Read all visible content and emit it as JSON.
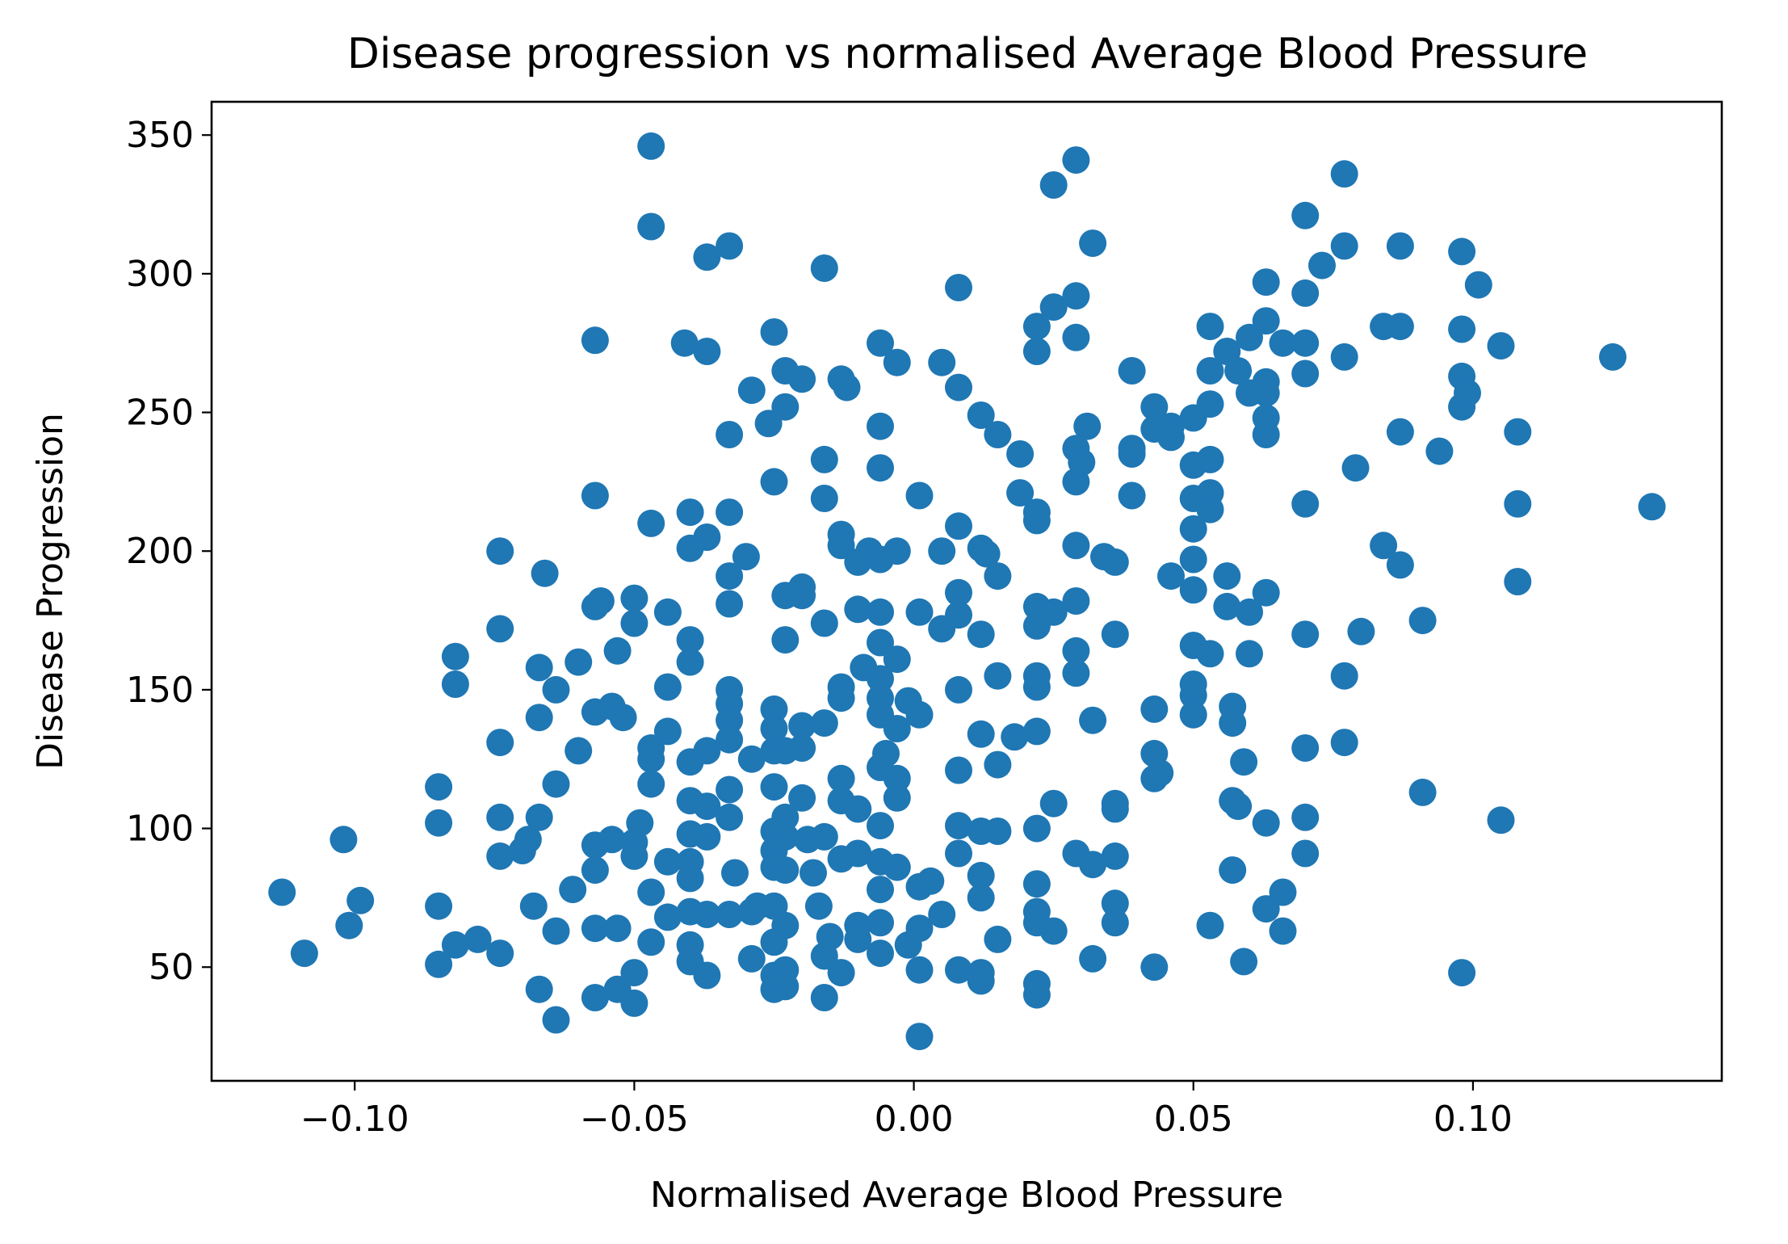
{
  "chart_data": {
    "type": "scatter",
    "title": "Disease progression vs normalised Average Blood Pressure",
    "xlabel": "Normalised Average Blood Pressure",
    "ylabel": "Disease Progression",
    "xlim": [
      -0.1256,
      0.1445
    ],
    "ylim": [
      9,
      362
    ],
    "x_ticks": [
      -0.1,
      -0.05,
      0.0,
      0.05,
      0.1
    ],
    "x_tick_labels": [
      "−0.10",
      "−0.05",
      "0.00",
      "0.05",
      "0.10"
    ],
    "y_ticks": [
      50,
      100,
      150,
      200,
      250,
      300,
      350
    ],
    "y_tick_labels": [
      "50",
      "100",
      "150",
      "200",
      "250",
      "300",
      "350"
    ],
    "grid": false,
    "marker_color": "#1f77b4",
    "points": [
      [
        -0.113,
        77
      ],
      [
        -0.109,
        55
      ],
      [
        -0.102,
        96
      ],
      [
        -0.101,
        65
      ],
      [
        -0.099,
        74
      ],
      [
        -0.085,
        115
      ],
      [
        -0.085,
        102
      ],
      [
        -0.085,
        72
      ],
      [
        -0.085,
        51
      ],
      [
        -0.082,
        162
      ],
      [
        -0.082,
        152
      ],
      [
        -0.082,
        58
      ],
      [
        -0.078,
        60
      ],
      [
        -0.074,
        200
      ],
      [
        -0.074,
        172
      ],
      [
        -0.074,
        131
      ],
      [
        -0.074,
        104
      ],
      [
        -0.074,
        90
      ],
      [
        -0.074,
        55
      ],
      [
        -0.07,
        92
      ],
      [
        -0.069,
        96
      ],
      [
        -0.068,
        72
      ],
      [
        -0.067,
        158
      ],
      [
        -0.067,
        140
      ],
      [
        -0.067,
        104
      ],
      [
        -0.067,
        42
      ],
      [
        -0.066,
        192
      ],
      [
        -0.064,
        150
      ],
      [
        -0.064,
        116
      ],
      [
        -0.064,
        63
      ],
      [
        -0.064,
        31
      ],
      [
        -0.061,
        78
      ],
      [
        -0.06,
        160
      ],
      [
        -0.06,
        128
      ],
      [
        -0.057,
        276
      ],
      [
        -0.057,
        220
      ],
      [
        -0.057,
        180
      ],
      [
        -0.057,
        142
      ],
      [
        -0.057,
        94
      ],
      [
        -0.057,
        85
      ],
      [
        -0.057,
        64
      ],
      [
        -0.057,
        39
      ],
      [
        -0.056,
        182
      ],
      [
        -0.054,
        144
      ],
      [
        -0.054,
        96
      ],
      [
        -0.053,
        164
      ],
      [
        -0.053,
        64
      ],
      [
        -0.053,
        42
      ],
      [
        -0.052,
        140
      ],
      [
        -0.05,
        183
      ],
      [
        -0.05,
        174
      ],
      [
        -0.05,
        95
      ],
      [
        -0.05,
        90
      ],
      [
        -0.05,
        48
      ],
      [
        -0.05,
        37
      ],
      [
        -0.049,
        102
      ],
      [
        -0.047,
        346
      ],
      [
        -0.047,
        317
      ],
      [
        -0.047,
        210
      ],
      [
        -0.047,
        129
      ],
      [
        -0.047,
        125
      ],
      [
        -0.047,
        116
      ],
      [
        -0.047,
        77
      ],
      [
        -0.047,
        59
      ],
      [
        -0.044,
        178
      ],
      [
        -0.044,
        151
      ],
      [
        -0.044,
        135
      ],
      [
        -0.044,
        88
      ],
      [
        -0.044,
        68
      ],
      [
        -0.041,
        275
      ],
      [
        -0.04,
        214
      ],
      [
        -0.04,
        201
      ],
      [
        -0.04,
        168
      ],
      [
        -0.04,
        160
      ],
      [
        -0.04,
        124
      ],
      [
        -0.04,
        110
      ],
      [
        -0.04,
        98
      ],
      [
        -0.04,
        88
      ],
      [
        -0.04,
        82
      ],
      [
        -0.04,
        70
      ],
      [
        -0.04,
        58
      ],
      [
        -0.04,
        52
      ],
      [
        -0.037,
        306
      ],
      [
        -0.037,
        272
      ],
      [
        -0.037,
        205
      ],
      [
        -0.037,
        128
      ],
      [
        -0.037,
        108
      ],
      [
        -0.037,
        97
      ],
      [
        -0.037,
        69
      ],
      [
        -0.037,
        47
      ],
      [
        -0.033,
        310
      ],
      [
        -0.033,
        242
      ],
      [
        -0.033,
        214
      ],
      [
        -0.033,
        191
      ],
      [
        -0.033,
        181
      ],
      [
        -0.033,
        150
      ],
      [
        -0.033,
        145
      ],
      [
        -0.033,
        139
      ],
      [
        -0.033,
        132
      ],
      [
        -0.033,
        114
      ],
      [
        -0.033,
        104
      ],
      [
        -0.033,
        69
      ],
      [
        -0.032,
        84
      ],
      [
        -0.03,
        198
      ],
      [
        -0.029,
        258
      ],
      [
        -0.029,
        125
      ],
      [
        -0.029,
        70
      ],
      [
        -0.029,
        53
      ],
      [
        -0.028,
        72
      ],
      [
        -0.026,
        246
      ],
      [
        -0.025,
        279
      ],
      [
        -0.025,
        225
      ],
      [
        -0.025,
        143
      ],
      [
        -0.025,
        136
      ],
      [
        -0.025,
        128
      ],
      [
        -0.025,
        115
      ],
      [
        -0.025,
        99
      ],
      [
        -0.025,
        92
      ],
      [
        -0.025,
        86
      ],
      [
        -0.025,
        72
      ],
      [
        -0.025,
        59
      ],
      [
        -0.025,
        47
      ],
      [
        -0.025,
        42
      ],
      [
        -0.023,
        265
      ],
      [
        -0.023,
        252
      ],
      [
        -0.023,
        184
      ],
      [
        -0.023,
        168
      ],
      [
        -0.023,
        128
      ],
      [
        -0.023,
        104
      ],
      [
        -0.023,
        97
      ],
      [
        -0.023,
        85
      ],
      [
        -0.023,
        65
      ],
      [
        -0.023,
        49
      ],
      [
        -0.023,
        43
      ],
      [
        -0.02,
        262
      ],
      [
        -0.02,
        187
      ],
      [
        -0.02,
        184
      ],
      [
        -0.02,
        137
      ],
      [
        -0.02,
        129
      ],
      [
        -0.02,
        111
      ],
      [
        -0.019,
        96
      ],
      [
        -0.018,
        84
      ],
      [
        -0.017,
        72
      ],
      [
        -0.016,
        302
      ],
      [
        -0.016,
        233
      ],
      [
        -0.016,
        219
      ],
      [
        -0.016,
        174
      ],
      [
        -0.016,
        138
      ],
      [
        -0.016,
        97
      ],
      [
        -0.016,
        54
      ],
      [
        -0.016,
        39
      ],
      [
        -0.015,
        61
      ],
      [
        -0.013,
        262
      ],
      [
        -0.013,
        206
      ],
      [
        -0.013,
        202
      ],
      [
        -0.013,
        151
      ],
      [
        -0.013,
        147
      ],
      [
        -0.013,
        118
      ],
      [
        -0.013,
        110
      ],
      [
        -0.013,
        89
      ],
      [
        -0.013,
        48
      ],
      [
        -0.012,
        259
      ],
      [
        -0.01,
        196
      ],
      [
        -0.01,
        179
      ],
      [
        -0.01,
        107
      ],
      [
        -0.01,
        91
      ],
      [
        -0.01,
        65
      ],
      [
        -0.01,
        60
      ],
      [
        -0.009,
        158
      ],
      [
        -0.008,
        200
      ],
      [
        -0.006,
        275
      ],
      [
        -0.006,
        245
      ],
      [
        -0.006,
        230
      ],
      [
        -0.006,
        197
      ],
      [
        -0.006,
        178
      ],
      [
        -0.006,
        167
      ],
      [
        -0.006,
        154
      ],
      [
        -0.006,
        147
      ],
      [
        -0.006,
        141
      ],
      [
        -0.006,
        122
      ],
      [
        -0.006,
        101
      ],
      [
        -0.006,
        88
      ],
      [
        -0.006,
        78
      ],
      [
        -0.006,
        66
      ],
      [
        -0.006,
        55
      ],
      [
        -0.005,
        127
      ],
      [
        -0.003,
        268
      ],
      [
        -0.003,
        200
      ],
      [
        -0.003,
        161
      ],
      [
        -0.003,
        136
      ],
      [
        -0.003,
        118
      ],
      [
        -0.003,
        111
      ],
      [
        -0.003,
        86
      ],
      [
        -0.001,
        146
      ],
      [
        -0.001,
        58
      ],
      [
        0.001,
        220
      ],
      [
        0.001,
        178
      ],
      [
        0.001,
        141
      ],
      [
        0.001,
        79
      ],
      [
        0.001,
        64
      ],
      [
        0.001,
        49
      ],
      [
        0.001,
        25
      ],
      [
        0.003,
        81
      ],
      [
        0.005,
        268
      ],
      [
        0.005,
        200
      ],
      [
        0.005,
        172
      ],
      [
        0.005,
        69
      ],
      [
        0.008,
        295
      ],
      [
        0.008,
        259
      ],
      [
        0.008,
        209
      ],
      [
        0.008,
        185
      ],
      [
        0.008,
        177
      ],
      [
        0.008,
        150
      ],
      [
        0.008,
        121
      ],
      [
        0.008,
        101
      ],
      [
        0.008,
        91
      ],
      [
        0.008,
        49
      ],
      [
        0.012,
        249
      ],
      [
        0.012,
        201
      ],
      [
        0.012,
        170
      ],
      [
        0.012,
        134
      ],
      [
        0.012,
        99
      ],
      [
        0.012,
        83
      ],
      [
        0.012,
        75
      ],
      [
        0.012,
        48
      ],
      [
        0.012,
        45
      ],
      [
        0.013,
        199
      ],
      [
        0.015,
        242
      ],
      [
        0.015,
        191
      ],
      [
        0.015,
        155
      ],
      [
        0.015,
        123
      ],
      [
        0.015,
        99
      ],
      [
        0.015,
        60
      ],
      [
        0.018,
        133
      ],
      [
        0.019,
        221
      ],
      [
        0.019,
        235
      ],
      [
        0.022,
        281
      ],
      [
        0.022,
        272
      ],
      [
        0.022,
        214
      ],
      [
        0.022,
        211
      ],
      [
        0.022,
        180
      ],
      [
        0.022,
        173
      ],
      [
        0.022,
        155
      ],
      [
        0.022,
        151
      ],
      [
        0.022,
        135
      ],
      [
        0.022,
        100
      ],
      [
        0.022,
        80
      ],
      [
        0.022,
        70
      ],
      [
        0.022,
        66
      ],
      [
        0.022,
        44
      ],
      [
        0.022,
        40
      ],
      [
        0.025,
        332
      ],
      [
        0.025,
        288
      ],
      [
        0.025,
        178
      ],
      [
        0.025,
        109
      ],
      [
        0.025,
        63
      ],
      [
        0.029,
        341
      ],
      [
        0.029,
        292
      ],
      [
        0.029,
        277
      ],
      [
        0.029,
        237
      ],
      [
        0.029,
        225
      ],
      [
        0.029,
        202
      ],
      [
        0.029,
        182
      ],
      [
        0.029,
        164
      ],
      [
        0.029,
        156
      ],
      [
        0.029,
        91
      ],
      [
        0.03,
        232
      ],
      [
        0.031,
        245
      ],
      [
        0.032,
        311
      ],
      [
        0.032,
        139
      ],
      [
        0.032,
        87
      ],
      [
        0.032,
        53
      ],
      [
        0.034,
        198
      ],
      [
        0.036,
        196
      ],
      [
        0.036,
        170
      ],
      [
        0.036,
        109
      ],
      [
        0.036,
        107
      ],
      [
        0.036,
        90
      ],
      [
        0.036,
        73
      ],
      [
        0.036,
        66
      ],
      [
        0.039,
        237
      ],
      [
        0.039,
        235
      ],
      [
        0.039,
        220
      ],
      [
        0.039,
        265
      ],
      [
        0.043,
        252
      ],
      [
        0.043,
        244
      ],
      [
        0.043,
        143
      ],
      [
        0.043,
        127
      ],
      [
        0.043,
        118
      ],
      [
        0.043,
        50
      ],
      [
        0.044,
        120
      ],
      [
        0.046,
        245
      ],
      [
        0.046,
        241
      ],
      [
        0.046,
        191
      ],
      [
        0.05,
        248
      ],
      [
        0.05,
        231
      ],
      [
        0.05,
        219
      ],
      [
        0.05,
        208
      ],
      [
        0.05,
        197
      ],
      [
        0.05,
        186
      ],
      [
        0.05,
        166
      ],
      [
        0.05,
        152
      ],
      [
        0.05,
        148
      ],
      [
        0.05,
        141
      ],
      [
        0.053,
        281
      ],
      [
        0.053,
        265
      ],
      [
        0.053,
        253
      ],
      [
        0.053,
        233
      ],
      [
        0.053,
        221
      ],
      [
        0.053,
        215
      ],
      [
        0.053,
        163
      ],
      [
        0.053,
        65
      ],
      [
        0.056,
        272
      ],
      [
        0.056,
        191
      ],
      [
        0.056,
        180
      ],
      [
        0.057,
        144
      ],
      [
        0.057,
        138
      ],
      [
        0.057,
        110
      ],
      [
        0.057,
        85
      ],
      [
        0.058,
        265
      ],
      [
        0.058,
        108
      ],
      [
        0.059,
        124
      ],
      [
        0.059,
        52
      ],
      [
        0.06,
        277
      ],
      [
        0.06,
        257
      ],
      [
        0.06,
        178
      ],
      [
        0.06,
        163
      ],
      [
        0.063,
        297
      ],
      [
        0.063,
        283
      ],
      [
        0.063,
        261
      ],
      [
        0.063,
        257
      ],
      [
        0.063,
        248
      ],
      [
        0.063,
        242
      ],
      [
        0.063,
        185
      ],
      [
        0.063,
        102
      ],
      [
        0.063,
        71
      ],
      [
        0.066,
        275
      ],
      [
        0.066,
        77
      ],
      [
        0.066,
        63
      ],
      [
        0.07,
        321
      ],
      [
        0.07,
        293
      ],
      [
        0.07,
        275
      ],
      [
        0.07,
        264
      ],
      [
        0.07,
        217
      ],
      [
        0.07,
        170
      ],
      [
        0.07,
        129
      ],
      [
        0.07,
        104
      ],
      [
        0.07,
        91
      ],
      [
        0.073,
        303
      ],
      [
        0.077,
        336
      ],
      [
        0.077,
        310
      ],
      [
        0.077,
        270
      ],
      [
        0.077,
        155
      ],
      [
        0.077,
        131
      ],
      [
        0.079,
        230
      ],
      [
        0.08,
        171
      ],
      [
        0.084,
        281
      ],
      [
        0.084,
        202
      ],
      [
        0.087,
        310
      ],
      [
        0.087,
        281
      ],
      [
        0.087,
        243
      ],
      [
        0.087,
        195
      ],
      [
        0.091,
        175
      ],
      [
        0.091,
        113
      ],
      [
        0.094,
        236
      ],
      [
        0.098,
        308
      ],
      [
        0.098,
        280
      ],
      [
        0.098,
        263
      ],
      [
        0.098,
        252
      ],
      [
        0.098,
        48
      ],
      [
        0.099,
        257
      ],
      [
        0.101,
        296
      ],
      [
        0.105,
        274
      ],
      [
        0.105,
        103
      ],
      [
        0.108,
        243
      ],
      [
        0.108,
        217
      ],
      [
        0.108,
        189
      ],
      [
        0.125,
        270
      ],
      [
        0.132,
        216
      ]
    ]
  }
}
